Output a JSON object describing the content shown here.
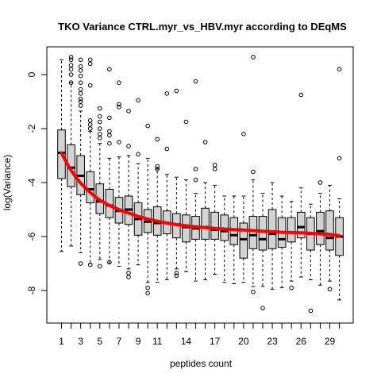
{
  "chart_data": {
    "type": "boxplot",
    "title": "TKO Variance CTRL.myr_vs_HBV.myr according to DEqMS",
    "xlabel": "peptides count",
    "ylabel": "log(Variance)",
    "ylim": [
      -9.3,
      1.1
    ],
    "y_ticks": [
      0,
      -2,
      -4,
      -6,
      -8
    ],
    "y_tick_labels": [
      "0",
      "-2",
      "-4",
      "-6",
      "-8"
    ],
    "x_tick_labels": [
      "1",
      "3",
      "5",
      "7",
      "9",
      "11",
      "14",
      "17",
      "20",
      "23",
      "26",
      "29"
    ],
    "x_tick_categories": [
      1,
      3,
      5,
      7,
      9,
      11,
      14,
      17,
      20,
      23,
      26,
      29
    ],
    "x_minor_ticks": [
      2,
      4,
      6,
      8,
      10,
      12,
      13,
      15,
      16,
      18,
      19,
      21,
      22,
      24,
      25,
      27,
      28,
      30
    ],
    "categories": [
      1,
      2,
      3,
      4,
      5,
      6,
      7,
      8,
      9,
      10,
      11,
      12,
      13,
      14,
      15,
      16,
      17,
      18,
      19,
      20,
      21,
      22,
      23,
      24,
      25,
      26,
      27,
      28,
      29,
      30
    ],
    "box_fill": "#d3d3d3",
    "trend_color": "#ff0000",
    "boxes": [
      {
        "q1": -3.85,
        "median": -2.9,
        "q3": -2.05,
        "wlo": -6.55,
        "whi": 0.55,
        "outliers": []
      },
      {
        "q1": -4.15,
        "median": -3.45,
        "q3": -2.6,
        "wlo": -6.35,
        "whi": -0.3,
        "outliers": [
          0.65,
          0.55,
          0.35,
          0.2,
          0.0,
          -0.3
        ]
      },
      {
        "q1": -4.45,
        "median": -3.75,
        "q3": -3.0,
        "wlo": -6.6,
        "whi": -1.35,
        "outliers": [
          0.55,
          0.3,
          0.15,
          -0.05,
          -0.3,
          -0.55,
          -0.7,
          -0.9,
          -1.0,
          -1.15,
          -7.0
        ]
      },
      {
        "q1": -4.75,
        "median": -4.25,
        "q3": -3.6,
        "wlo": -7.0,
        "whi": -2.1,
        "outliers": [
          0.55,
          0.4,
          -0.4,
          -1.7,
          -1.85,
          -2.0,
          -7.05
        ]
      },
      {
        "q1": -5.15,
        "median": -4.7,
        "q3": -4.05,
        "wlo": -6.85,
        "whi": -2.55,
        "outliers": [
          -1.25,
          -1.55,
          -1.75,
          -2.0,
          -2.2,
          -2.35,
          -7.1
        ]
      },
      {
        "q1": -5.3,
        "median": -4.85,
        "q3": -4.25,
        "wlo": -7.0,
        "whi": -3.1,
        "outliers": [
          0.2,
          -1.6,
          -2.1,
          -2.25,
          -2.55,
          -6.95
        ]
      },
      {
        "q1": -5.5,
        "median": -5.05,
        "q3": -4.55,
        "wlo": -7.1,
        "whi": -3.05,
        "outliers": [
          -0.3,
          -1.1,
          -1.2,
          -2.5
        ]
      },
      {
        "q1": -5.55,
        "median": -5.0,
        "q3": -4.5,
        "wlo": -7.2,
        "whi": -3.0,
        "outliers": [
          -1.35,
          -2.65,
          -7.35,
          -7.5
        ]
      },
      {
        "q1": -5.95,
        "median": -5.35,
        "q3": -4.75,
        "wlo": -7.05,
        "whi": -3.3,
        "outliers": [
          -0.95,
          -2.95
        ]
      },
      {
        "q1": -5.85,
        "median": -5.45,
        "q3": -5.0,
        "wlo": -7.7,
        "whi": -3.1,
        "outliers": [
          -1.9,
          -7.9,
          -8.1
        ]
      },
      {
        "q1": -5.95,
        "median": -5.5,
        "q3": -4.9,
        "wlo": -7.7,
        "whi": -3.5,
        "outliers": [
          -2.4,
          -3.4,
          -3.5
        ]
      },
      {
        "q1": -5.9,
        "median": -5.5,
        "q3": -5.05,
        "wlo": -7.6,
        "whi": -3.7,
        "outliers": [
          -0.7,
          -2.75
        ]
      },
      {
        "q1": -6.05,
        "median": -5.55,
        "q3": -5.15,
        "wlo": -7.2,
        "whi": -3.8,
        "outliers": [
          -0.6,
          -7.35,
          -7.45
        ]
      },
      {
        "q1": -6.2,
        "median": -5.65,
        "q3": -5.2,
        "wlo": -7.3,
        "whi": -3.9,
        "outliers": [
          -1.75
        ]
      },
      {
        "q1": -6.1,
        "median": -5.7,
        "q3": -5.25,
        "wlo": -7.65,
        "whi": -4.4,
        "outliers": [
          -0.25,
          -3.5,
          -3.9
        ]
      },
      {
        "q1": -6.1,
        "median": -5.65,
        "q3": -4.95,
        "wlo": -7.6,
        "whi": -4.0,
        "outliers": [
          -2.5
        ]
      },
      {
        "q1": -6.1,
        "median": -5.75,
        "q3": -5.1,
        "wlo": -7.4,
        "whi": -4.1,
        "outliers": [
          -3.35,
          -3.5
        ]
      },
      {
        "q1": -6.15,
        "median": -5.8,
        "q3": -5.2,
        "wlo": -7.7,
        "whi": -4.5,
        "outliers": []
      },
      {
        "q1": -6.3,
        "median": -5.95,
        "q3": -5.3,
        "wlo": -7.75,
        "whi": -4.5,
        "outliers": []
      },
      {
        "q1": -6.8,
        "median": -6.1,
        "q3": -5.5,
        "wlo": -7.7,
        "whi": -4.5,
        "outliers": [
          -2.2
        ]
      },
      {
        "q1": -6.45,
        "median": -5.95,
        "q3": -5.25,
        "wlo": -7.85,
        "whi": -3.9,
        "outliers": [
          0.65,
          -3.6,
          -8.05
        ]
      },
      {
        "q1": -6.5,
        "median": -6.1,
        "q3": -5.25,
        "wlo": -7.85,
        "whi": -4.4,
        "outliers": [
          -8.65
        ]
      },
      {
        "q1": -6.45,
        "median": -5.9,
        "q3": -5.0,
        "wlo": -7.95,
        "whi": -4.0,
        "outliers": []
      },
      {
        "q1": -6.4,
        "median": -6.1,
        "q3": -5.3,
        "wlo": -7.9,
        "whi": -4.5,
        "outliers": []
      },
      {
        "q1": -6.2,
        "median": -5.85,
        "q3": -5.3,
        "wlo": -7.65,
        "whi": -4.7,
        "outliers": [
          -7.9
        ]
      },
      {
        "q1": -6.05,
        "median": -5.65,
        "q3": -5.1,
        "wlo": -7.5,
        "whi": -4.2,
        "outliers": [
          -0.75
        ]
      },
      {
        "q1": -6.5,
        "median": -5.9,
        "q3": -5.3,
        "wlo": -7.6,
        "whi": -4.8,
        "outliers": [
          -8.75
        ]
      },
      {
        "q1": -6.3,
        "median": -5.8,
        "q3": -5.1,
        "wlo": -7.8,
        "whi": -4.4,
        "outliers": [
          -4.0
        ]
      },
      {
        "q1": -6.5,
        "median": -6.05,
        "q3": -5.05,
        "wlo": -7.65,
        "whi": -4.1,
        "outliers": [
          -7.95
        ]
      },
      {
        "q1": -6.7,
        "median": -6.0,
        "q3": -5.3,
        "wlo": -8.35,
        "whi": -4.6,
        "outliers": [
          0.2,
          -3.1
        ]
      }
    ],
    "trend": [
      [
        1,
        -2.9
      ],
      [
        1.5,
        -3.25
      ],
      [
        2,
        -3.55
      ],
      [
        2.5,
        -3.8
      ],
      [
        3,
        -4.02
      ],
      [
        3.5,
        -4.2
      ],
      [
        4,
        -4.37
      ],
      [
        4.5,
        -4.52
      ],
      [
        5,
        -4.65
      ],
      [
        6,
        -4.85
      ],
      [
        7,
        -5.0
      ],
      [
        8,
        -5.13
      ],
      [
        9,
        -5.25
      ],
      [
        10,
        -5.35
      ],
      [
        11,
        -5.43
      ],
      [
        12,
        -5.5
      ],
      [
        13,
        -5.56
      ],
      [
        14,
        -5.6
      ],
      [
        15,
        -5.64
      ],
      [
        16,
        -5.67
      ],
      [
        17,
        -5.7
      ],
      [
        18,
        -5.72
      ],
      [
        19,
        -5.74
      ],
      [
        20,
        -5.76
      ],
      [
        21,
        -5.78
      ],
      [
        22,
        -5.8
      ],
      [
        23,
        -5.82
      ],
      [
        24,
        -5.84
      ],
      [
        25,
        -5.85
      ],
      [
        26,
        -5.86
      ],
      [
        27,
        -5.88
      ],
      [
        28,
        -5.9
      ],
      [
        29,
        -5.92
      ],
      [
        30,
        -5.97
      ]
    ]
  }
}
